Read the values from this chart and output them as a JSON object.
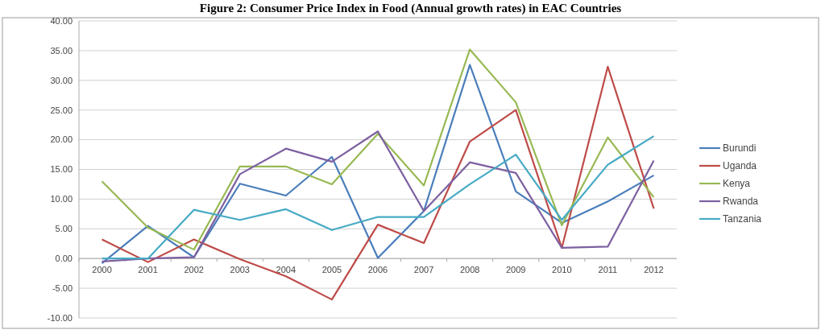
{
  "chart_data": {
    "type": "line",
    "title": "Figure 2: Consumer Price Index in Food (Annual growth rates) in EAC Countries",
    "categories": [
      "2000",
      "2001",
      "2002",
      "2003",
      "2004",
      "2005",
      "2006",
      "2007",
      "2008",
      "2009",
      "2010",
      "2011",
      "2012"
    ],
    "series": [
      {
        "name": "Burundi",
        "color": "#4a7ebb",
        "values": [
          -0.8,
          5.5,
          0.2,
          12.6,
          10.6,
          17.1,
          0.1,
          8.0,
          32.6,
          11.3,
          6.0,
          9.6,
          14.0
        ]
      },
      {
        "name": "Uganda",
        "color": "#be4b48",
        "values": [
          3.2,
          -0.6,
          3.2,
          -0.1,
          -3.0,
          -6.9,
          5.7,
          2.6,
          19.7,
          25.0,
          1.8,
          32.3,
          8.4
        ]
      },
      {
        "name": "Kenya",
        "color": "#98b954",
        "values": [
          13.0,
          5.2,
          1.5,
          15.5,
          15.5,
          12.5,
          21.0,
          12.3,
          35.2,
          26.3,
          5.6,
          20.4,
          10.3
        ]
      },
      {
        "name": "Rwanda",
        "color": "#7d60a0",
        "values": [
          -0.5,
          0.0,
          0.2,
          14.2,
          18.5,
          16.3,
          21.4,
          8.0,
          16.2,
          14.4,
          1.8,
          2.0,
          16.5
        ]
      },
      {
        "name": "Tanzania",
        "color": "#46aac5",
        "values": [
          0.0,
          0.0,
          8.2,
          6.5,
          8.3,
          4.8,
          7.0,
          7.0,
          12.5,
          17.5,
          6.5,
          15.8,
          20.6
        ]
      }
    ],
    "ylim": [
      -10,
      40
    ],
    "yticks": [
      {
        "value": -10,
        "label": "-10.00"
      },
      {
        "value": -5,
        "label": "-5.00"
      },
      {
        "value": 0,
        "label": "0.00"
      },
      {
        "value": 5,
        "label": "5.00"
      },
      {
        "value": 10,
        "label": "10.00"
      },
      {
        "value": 15,
        "label": "15.00"
      },
      {
        "value": 20,
        "label": "20.00"
      },
      {
        "value": 25,
        "label": "25.00"
      },
      {
        "value": 30,
        "label": "30.00"
      },
      {
        "value": 35,
        "label": "35.00"
      },
      {
        "value": 40,
        "label": "40.00"
      }
    ],
    "grid": "y",
    "legend": "right",
    "line_style": "solid"
  }
}
